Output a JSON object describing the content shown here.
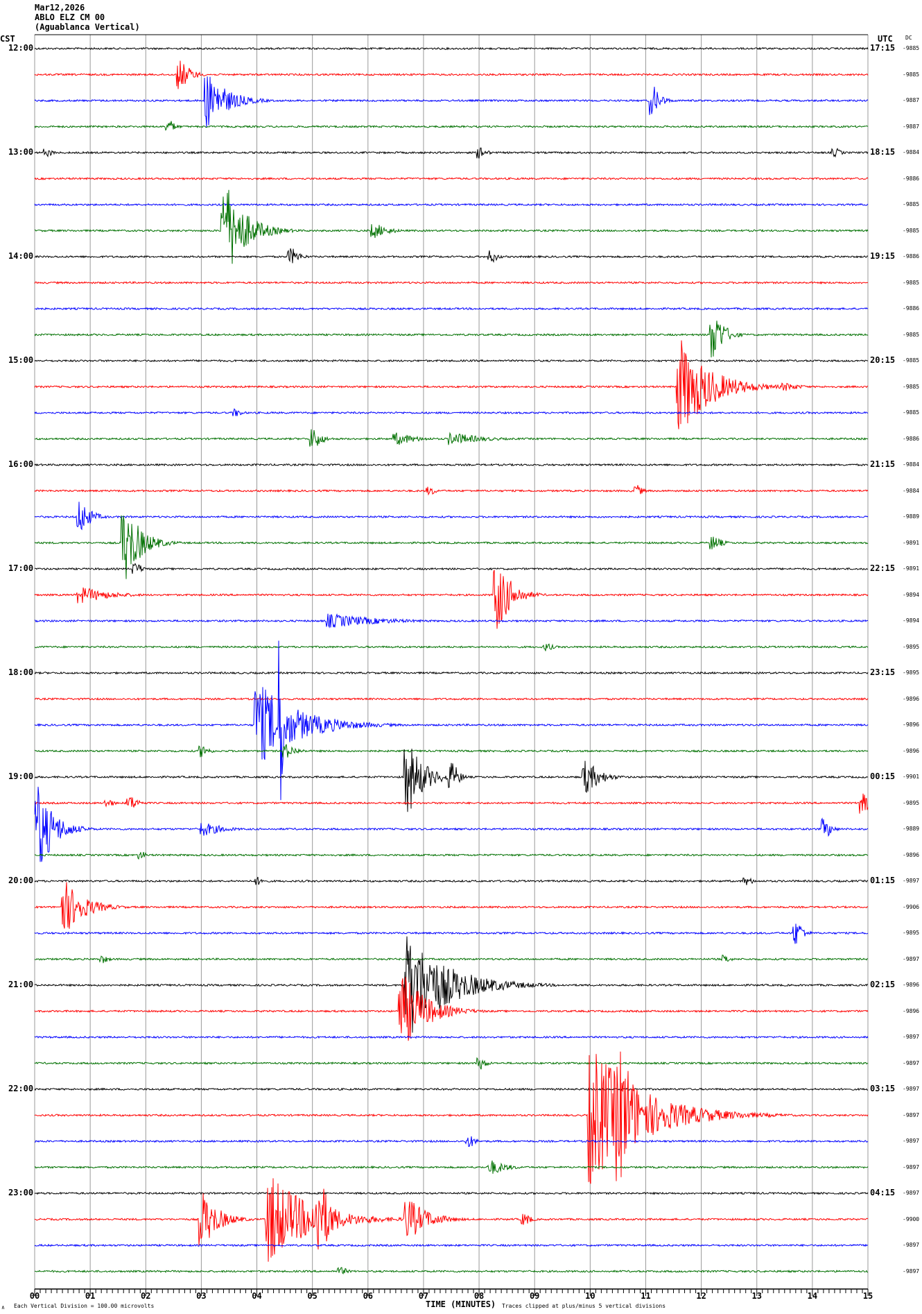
{
  "header": {
    "date": "Mar12,2026",
    "station": "ABLO ELZ CM 00",
    "location": "(Aguablanca Vertical)"
  },
  "left_axis_label": "CST",
  "right_axis_label": "UTC",
  "dc_label": "DC",
  "footer": {
    "scale": "Each Vertical Division =  100.00 microvolts",
    "xlabel": "TIME (MINUTES)",
    "clip_note": "Traces clipped at plus/minus 5 vertical divisions",
    "corner_mark": "∧"
  },
  "chart_data": {
    "type": "line",
    "title": "",
    "xlabel": "TIME (MINUTES)",
    "xlim": [
      0,
      15
    ],
    "x_ticks": [
      "00",
      "01",
      "02",
      "03",
      "04",
      "05",
      "06",
      "07",
      "08",
      "09",
      "10",
      "11",
      "12",
      "13",
      "14",
      "15"
    ],
    "grid": true,
    "trace_colors": [
      "#000000",
      "#ff0000",
      "#0000ff",
      "#007000"
    ],
    "minutes_per_trace": 15,
    "cst_labels": [
      "12:00",
      "13:00",
      "14:00",
      "15:00",
      "16:00",
      "17:00",
      "18:00",
      "19:00",
      "20:00",
      "21:00",
      "22:00",
      "23:00"
    ],
    "utc_labels": [
      "17:15",
      "18:15",
      "19:15",
      "20:15",
      "21:15",
      "22:15",
      "23:15",
      "00:15",
      "01:15",
      "02:15",
      "03:15",
      "04:15"
    ],
    "dc_values": [
      "-9885",
      "-9885",
      "-9887",
      "-9887",
      "-9884",
      "-9886",
      "-9885",
      "-9885",
      "-9886",
      "-9885",
      "-9886",
      "-9885",
      "-9885",
      "-9885",
      "-9885",
      "-9886",
      "-9884",
      "-9884",
      "-9889",
      "-9891",
      "-9891",
      "-9894",
      "-9894",
      "-9895",
      "-9895",
      "-9896",
      "-9896",
      "-9896",
      "-9901",
      "-9895",
      "-9889",
      "-9896",
      "-9897",
      "-9906",
      "-9895",
      "-9897",
      "-9896",
      "-9896",
      "-9897",
      "-9897",
      "-9897",
      "-9897",
      "-9897",
      "-9897",
      "-9897",
      "-9900",
      "-9897",
      "-9897"
    ],
    "events": [
      {
        "trace": 1,
        "minute": 2.6,
        "amp": 0.7,
        "dur": 0.5
      },
      {
        "trace": 2,
        "minute": 3.1,
        "amp": 1.3,
        "dur": 1.0
      },
      {
        "trace": 2,
        "minute": 11.1,
        "amp": 0.7,
        "dur": 0.4
      },
      {
        "trace": 3,
        "minute": 2.4,
        "amp": 0.3,
        "dur": 0.3
      },
      {
        "trace": 4,
        "minute": 0.2,
        "amp": 0.2,
        "dur": 0.3
      },
      {
        "trace": 4,
        "minute": 8.0,
        "amp": 0.3,
        "dur": 0.3
      },
      {
        "trace": 4,
        "minute": 14.4,
        "amp": 0.2,
        "dur": 0.3
      },
      {
        "trace": 7,
        "minute": 3.4,
        "amp": 2.3,
        "dur": 1.0
      },
      {
        "trace": 7,
        "minute": 6.1,
        "amp": 0.35,
        "dur": 0.7
      },
      {
        "trace": 8,
        "minute": 4.6,
        "amp": 0.4,
        "dur": 0.4
      },
      {
        "trace": 8,
        "minute": 8.2,
        "amp": 0.3,
        "dur": 0.3
      },
      {
        "trace": 11,
        "minute": 12.2,
        "amp": 1.2,
        "dur": 0.5
      },
      {
        "trace": 13,
        "minute": 11.6,
        "amp": 2.3,
        "dur": 1.5
      },
      {
        "trace": 13,
        "minute": 13.5,
        "amp": 0.2,
        "dur": 0.8
      },
      {
        "trace": 14,
        "minute": 3.6,
        "amp": 0.2,
        "dur": 0.3
      },
      {
        "trace": 15,
        "minute": 5.0,
        "amp": 0.5,
        "dur": 0.4
      },
      {
        "trace": 15,
        "minute": 6.5,
        "amp": 0.3,
        "dur": 1.0
      },
      {
        "trace": 15,
        "minute": 7.5,
        "amp": 0.3,
        "dur": 1.5
      },
      {
        "trace": 17,
        "minute": 7.1,
        "amp": 0.2,
        "dur": 0.3
      },
      {
        "trace": 17,
        "minute": 10.8,
        "amp": 0.3,
        "dur": 0.3
      },
      {
        "trace": 18,
        "minute": 0.8,
        "amp": 0.8,
        "dur": 0.5
      },
      {
        "trace": 19,
        "minute": 1.6,
        "amp": 1.8,
        "dur": 0.8
      },
      {
        "trace": 19,
        "minute": 12.2,
        "amp": 0.35,
        "dur": 0.4
      },
      {
        "trace": 20,
        "minute": 1.8,
        "amp": 0.3,
        "dur": 0.3
      },
      {
        "trace": 21,
        "minute": 0.8,
        "amp": 0.4,
        "dur": 1.5
      },
      {
        "trace": 21,
        "minute": 8.3,
        "amp": 1.7,
        "dur": 0.7
      },
      {
        "trace": 22,
        "minute": 5.3,
        "amp": 0.35,
        "dur": 2.5
      },
      {
        "trace": 23,
        "minute": 9.2,
        "amp": 0.2,
        "dur": 0.3
      },
      {
        "trace": 26,
        "minute": 4.0,
        "amp": 2.0,
        "dur": 2.0
      },
      {
        "trace": 26,
        "minute": 4.4,
        "amp": 4.3,
        "dur": 0.1
      },
      {
        "trace": 27,
        "minute": 3.0,
        "amp": 0.3,
        "dur": 0.3
      },
      {
        "trace": 27,
        "minute": 4.5,
        "amp": 0.35,
        "dur": 0.5
      },
      {
        "trace": 28,
        "minute": 6.7,
        "amp": 1.7,
        "dur": 0.8
      },
      {
        "trace": 28,
        "minute": 7.5,
        "amp": 0.7,
        "dur": 0.3
      },
      {
        "trace": 28,
        "minute": 9.9,
        "amp": 0.8,
        "dur": 0.7
      },
      {
        "trace": 29,
        "minute": 1.3,
        "amp": 0.2,
        "dur": 0.3
      },
      {
        "trace": 29,
        "minute": 1.7,
        "amp": 0.35,
        "dur": 0.4
      },
      {
        "trace": 29,
        "minute": 14.9,
        "amp": 1.0,
        "dur": 0.1
      },
      {
        "trace": 30,
        "minute": 0.0,
        "amp": 2.3,
        "dur": 0.8
      },
      {
        "trace": 30,
        "minute": 3.0,
        "amp": 0.35,
        "dur": 1.0
      },
      {
        "trace": 30,
        "minute": 14.2,
        "amp": 0.5,
        "dur": 0.3
      },
      {
        "trace": 31,
        "minute": 1.9,
        "amp": 0.2,
        "dur": 0.2
      },
      {
        "trace": 32,
        "minute": 4.0,
        "amp": 0.2,
        "dur": 0.3
      },
      {
        "trace": 32,
        "minute": 12.8,
        "amp": 0.2,
        "dur": 0.3
      },
      {
        "trace": 33,
        "minute": 0.5,
        "amp": 1.3,
        "dur": 1.0
      },
      {
        "trace": 34,
        "minute": 13.7,
        "amp": 0.6,
        "dur": 0.3
      },
      {
        "trace": 35,
        "minute": 1.2,
        "amp": 0.2,
        "dur": 0.3
      },
      {
        "trace": 35,
        "minute": 12.4,
        "amp": 0.2,
        "dur": 0.3
      },
      {
        "trace": 36,
        "minute": 6.7,
        "amp": 2.5,
        "dur": 2.0
      },
      {
        "trace": 37,
        "minute": 6.6,
        "amp": 1.8,
        "dur": 1.2
      },
      {
        "trace": 39,
        "minute": 8.0,
        "amp": 0.3,
        "dur": 0.3
      },
      {
        "trace": 41,
        "minute": 10.0,
        "amp": 3.3,
        "dur": 2.5
      },
      {
        "trace": 41,
        "minute": 10.5,
        "amp": 3.3,
        "dur": 1.0
      },
      {
        "trace": 42,
        "minute": 7.8,
        "amp": 0.3,
        "dur": 0.3
      },
      {
        "trace": 43,
        "minute": 8.2,
        "amp": 0.35,
        "dur": 0.8
      },
      {
        "trace": 45,
        "minute": 3.0,
        "amp": 1.3,
        "dur": 0.8
      },
      {
        "trace": 45,
        "minute": 4.2,
        "amp": 2.2,
        "dur": 2.0
      },
      {
        "trace": 45,
        "minute": 5.1,
        "amp": 2.0,
        "dur": 0.6
      },
      {
        "trace": 45,
        "minute": 6.7,
        "amp": 1.0,
        "dur": 1.0
      },
      {
        "trace": 45,
        "minute": 8.8,
        "amp": 0.3,
        "dur": 0.3
      },
      {
        "trace": 47,
        "minute": 5.5,
        "amp": 0.2,
        "dur": 0.3
      }
    ]
  }
}
